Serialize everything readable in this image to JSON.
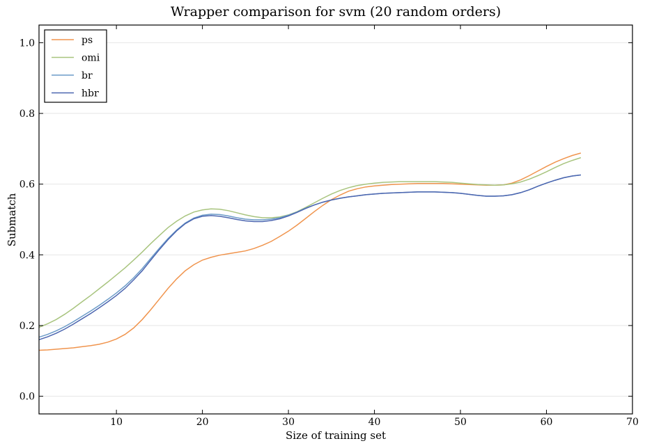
{
  "chart_data": {
    "type": "line",
    "title": "Wrapper comparison for svm (20 random orders)",
    "xlabel": "Size of training set",
    "ylabel": "Submatch",
    "xlim": [
      1,
      70
    ],
    "ylim": [
      -0.05,
      1.05
    ],
    "xticks": [
      10,
      20,
      30,
      40,
      50,
      60,
      70
    ],
    "yticks": [
      0.0,
      0.2,
      0.4,
      0.6,
      0.8,
      1.0
    ],
    "xtick_labels": [
      "10",
      "20",
      "30",
      "40",
      "50",
      "60",
      "70"
    ],
    "ytick_labels": [
      "0.0",
      "0.2",
      "0.4",
      "0.6",
      "0.8",
      "1.0"
    ],
    "grid": "horizontal",
    "legend_position": "top-left",
    "x": [
      1,
      2,
      3,
      4,
      5,
      6,
      7,
      8,
      9,
      10,
      11,
      12,
      13,
      14,
      15,
      16,
      17,
      18,
      19,
      20,
      21,
      22,
      23,
      24,
      25,
      26,
      27,
      28,
      29,
      30,
      31,
      32,
      33,
      34,
      35,
      36,
      37,
      38,
      39,
      40,
      41,
      42,
      43,
      44,
      45,
      46,
      47,
      48,
      49,
      50,
      51,
      52,
      53,
      54,
      55,
      56,
      57,
      58,
      59,
      60,
      61,
      62,
      63,
      64
    ],
    "series": [
      {
        "name": "ps",
        "color": "#f0944d",
        "values": [
          0.13,
          0.131,
          0.133,
          0.135,
          0.137,
          0.14,
          0.143,
          0.147,
          0.153,
          0.162,
          0.175,
          0.193,
          0.217,
          0.245,
          0.275,
          0.305,
          0.332,
          0.355,
          0.372,
          0.385,
          0.393,
          0.399,
          0.403,
          0.407,
          0.411,
          0.418,
          0.427,
          0.438,
          0.452,
          0.467,
          0.484,
          0.503,
          0.522,
          0.54,
          0.556,
          0.569,
          0.58,
          0.587,
          0.592,
          0.595,
          0.597,
          0.599,
          0.6,
          0.601,
          0.602,
          0.602,
          0.602,
          0.602,
          0.601,
          0.6,
          0.599,
          0.598,
          0.597,
          0.597,
          0.598,
          0.603,
          0.612,
          0.624,
          0.637,
          0.65,
          0.662,
          0.672,
          0.681,
          0.688
        ]
      },
      {
        "name": "omi",
        "color": "#a8c47e",
        "values": [
          0.195,
          0.205,
          0.217,
          0.232,
          0.249,
          0.267,
          0.285,
          0.304,
          0.323,
          0.343,
          0.363,
          0.385,
          0.408,
          0.432,
          0.455,
          0.477,
          0.495,
          0.51,
          0.521,
          0.527,
          0.53,
          0.529,
          0.525,
          0.519,
          0.513,
          0.508,
          0.505,
          0.505,
          0.507,
          0.513,
          0.522,
          0.534,
          0.547,
          0.56,
          0.572,
          0.582,
          0.59,
          0.596,
          0.6,
          0.603,
          0.605,
          0.606,
          0.607,
          0.607,
          0.607,
          0.607,
          0.607,
          0.606,
          0.605,
          0.603,
          0.601,
          0.599,
          0.598,
          0.597,
          0.598,
          0.601,
          0.606,
          0.614,
          0.624,
          0.635,
          0.647,
          0.658,
          0.667,
          0.675
        ]
      },
      {
        "name": "br",
        "color": "#6b9bc8",
        "values": [
          0.167,
          0.175,
          0.185,
          0.197,
          0.211,
          0.226,
          0.241,
          0.257,
          0.274,
          0.292,
          0.312,
          0.335,
          0.361,
          0.39,
          0.419,
          0.446,
          0.47,
          0.49,
          0.504,
          0.512,
          0.515,
          0.514,
          0.51,
          0.505,
          0.501,
          0.499,
          0.499,
          0.501,
          0.505,
          0.512,
          0.521,
          0.532,
          0.541,
          0.549,
          0.555,
          0.56,
          0.564,
          0.567,
          0.57,
          0.572,
          0.574,
          0.575,
          0.576,
          0.577,
          0.578,
          0.578,
          0.578,
          0.577,
          0.576,
          0.574,
          0.571,
          0.568,
          0.566,
          0.566,
          0.567,
          0.57,
          0.576,
          0.584,
          0.594,
          0.603,
          0.611,
          0.618,
          0.623,
          0.626
        ]
      },
      {
        "name": "hbr",
        "color": "#4c66b0",
        "values": [
          0.16,
          0.168,
          0.178,
          0.19,
          0.204,
          0.219,
          0.234,
          0.25,
          0.267,
          0.285,
          0.305,
          0.329,
          0.355,
          0.385,
          0.415,
          0.443,
          0.468,
          0.488,
          0.502,
          0.509,
          0.511,
          0.509,
          0.505,
          0.5,
          0.496,
          0.494,
          0.494,
          0.497,
          0.502,
          0.51,
          0.52,
          0.531,
          0.541,
          0.549,
          0.555,
          0.56,
          0.564,
          0.567,
          0.57,
          0.572,
          0.574,
          0.575,
          0.576,
          0.577,
          0.578,
          0.578,
          0.578,
          0.577,
          0.576,
          0.574,
          0.571,
          0.568,
          0.566,
          0.566,
          0.567,
          0.57,
          0.576,
          0.584,
          0.594,
          0.603,
          0.611,
          0.618,
          0.623,
          0.626
        ]
      }
    ]
  }
}
